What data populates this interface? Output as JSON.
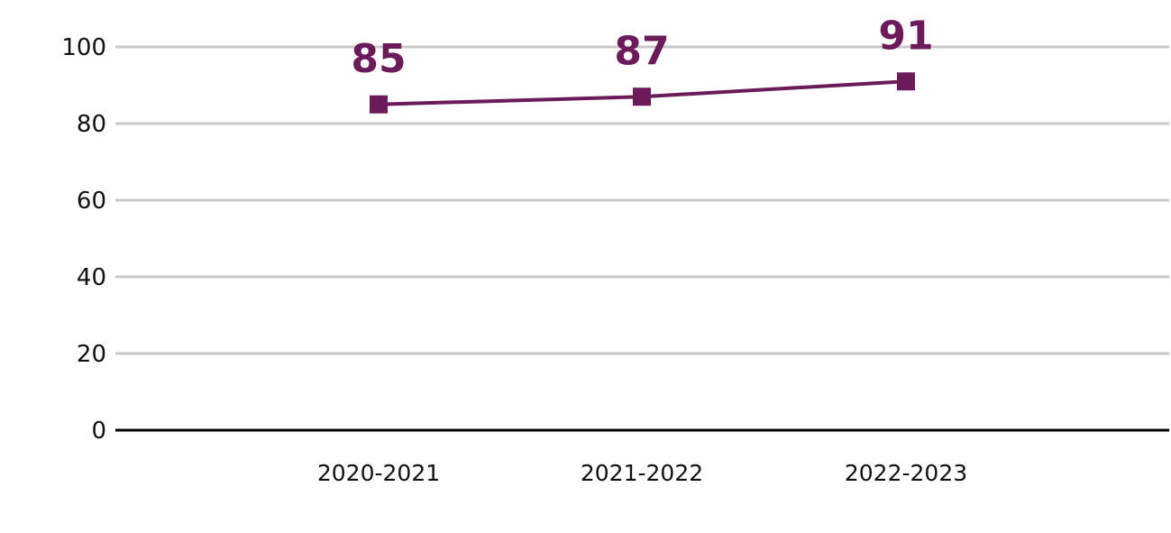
{
  "chart_data": {
    "type": "line",
    "categories": [
      "2020-2021",
      "2021-2022",
      "2022-2023"
    ],
    "values": [
      85,
      87,
      91
    ],
    "data_labels": [
      "85",
      "87",
      "91"
    ],
    "y_ticks": [
      "0",
      "20",
      "40",
      "60",
      "80",
      "100"
    ],
    "y_tick_values": [
      0,
      20,
      40,
      60,
      80,
      100
    ],
    "ylim": [
      0,
      100
    ],
    "grid": true,
    "legend": "none",
    "marker": "square",
    "colors": {
      "series": "#6b1a5a",
      "grid": "#c8c8c8",
      "axis": "#000000"
    }
  }
}
